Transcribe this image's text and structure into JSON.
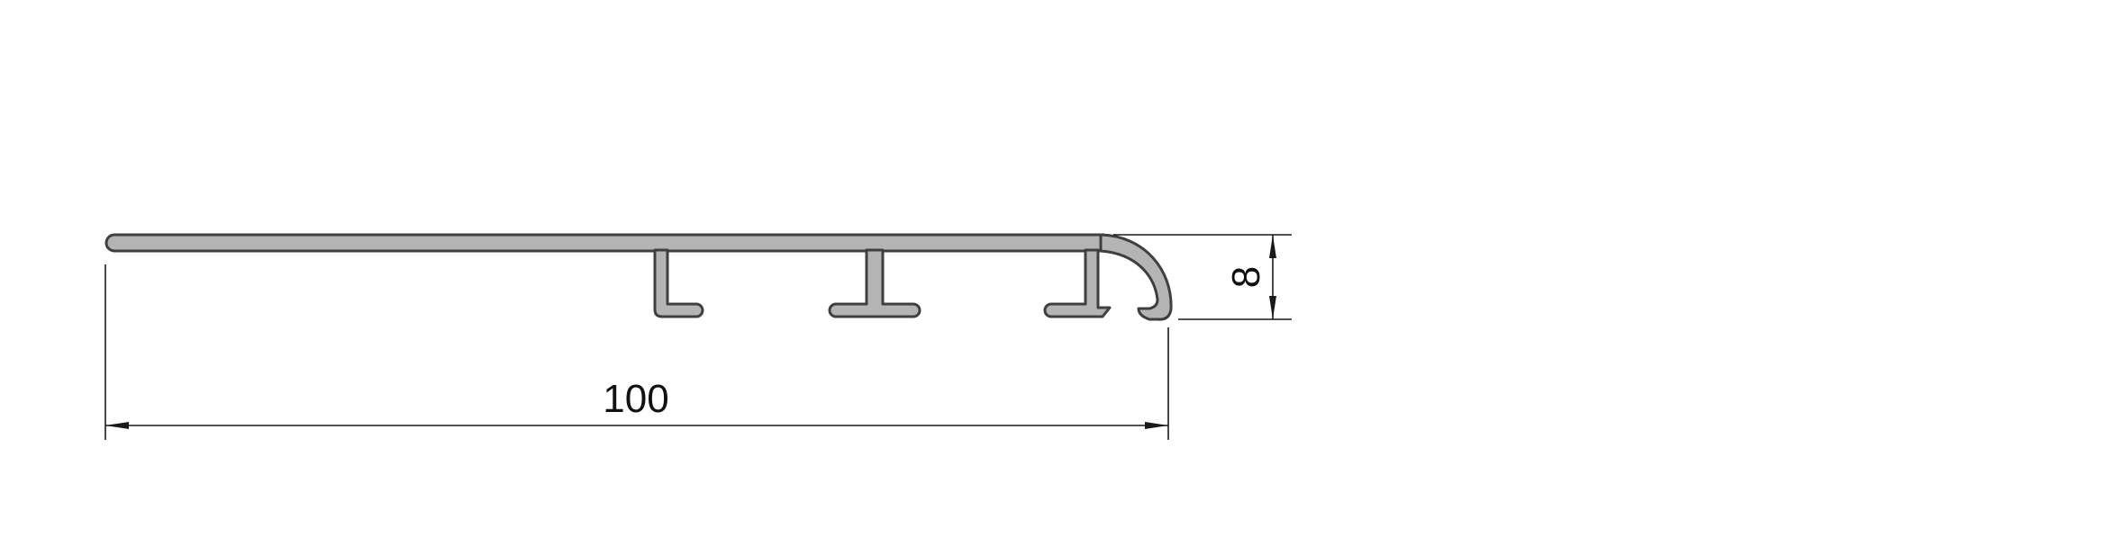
{
  "drawing": {
    "profile_color": "#b4b4b4",
    "outline_color": "#3f3f3f",
    "dimension_color": "#1a1a1a",
    "dimensions": {
      "width_value": "100",
      "height_value": "8"
    }
  }
}
